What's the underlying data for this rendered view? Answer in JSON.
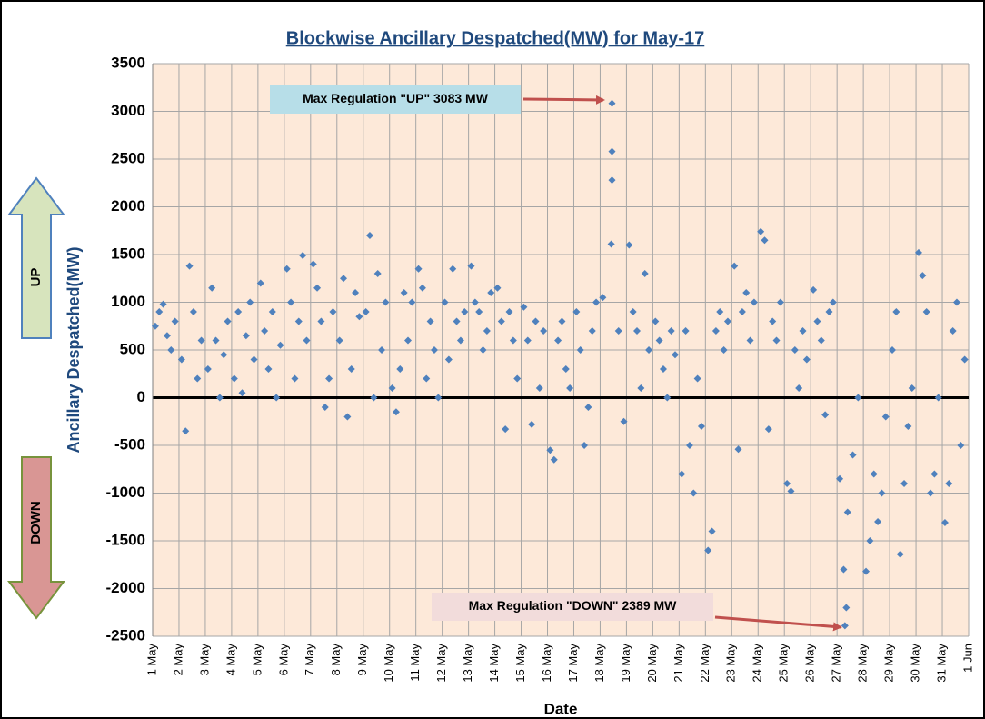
{
  "chart_data": {
    "type": "scatter",
    "title": "Blockwise Ancillary Despatched(MW) for May-17",
    "x_label": "Date",
    "y_label": "Ancillary Despatched(MW)",
    "side_labels": [
      "UP",
      "DOWN"
    ],
    "annotations": [
      "Max Regulation \"UP\" 3083 MW",
      "Max Regulation \"DOWN\" 2389 MW"
    ],
    "xlim": [
      0,
      31
    ],
    "ylim": [
      -2500,
      3500
    ],
    "xticks": [
      {
        "value": 0,
        "label": "1 May"
      },
      {
        "value": 1,
        "label": "2 May"
      },
      {
        "value": 2,
        "label": "3 May"
      },
      {
        "value": 3,
        "label": "4 May"
      },
      {
        "value": 4,
        "label": "5 May"
      },
      {
        "value": 5,
        "label": "6 May"
      },
      {
        "value": 6,
        "label": "7 May"
      },
      {
        "value": 7,
        "label": "8 May"
      },
      {
        "value": 8,
        "label": "9 May"
      },
      {
        "value": 9,
        "label": "10 May"
      },
      {
        "value": 10,
        "label": "11 May"
      },
      {
        "value": 11,
        "label": "12 May"
      },
      {
        "value": 12,
        "label": "13 May"
      },
      {
        "value": 13,
        "label": "14 May"
      },
      {
        "value": 14,
        "label": "15 May"
      },
      {
        "value": 15,
        "label": "16 May"
      },
      {
        "value": 16,
        "label": "17 May"
      },
      {
        "value": 17,
        "label": "18 May"
      },
      {
        "value": 18,
        "label": "19 May"
      },
      {
        "value": 19,
        "label": "20 May"
      },
      {
        "value": 20,
        "label": "21 May"
      },
      {
        "value": 21,
        "label": "22 May"
      },
      {
        "value": 22,
        "label": "23 May"
      },
      {
        "value": 23,
        "label": "24 May"
      },
      {
        "value": 24,
        "label": "25 May"
      },
      {
        "value": 25,
        "label": "26 May"
      },
      {
        "value": 26,
        "label": "27 May"
      },
      {
        "value": 27,
        "label": "28 May"
      },
      {
        "value": 28,
        "label": "29 May"
      },
      {
        "value": 29,
        "label": "30 May"
      },
      {
        "value": 30,
        "label": "31 May"
      },
      {
        "value": 31,
        "label": "1 Jun"
      }
    ],
    "yticks": [
      -2500,
      -2000,
      -1500,
      -1000,
      -500,
      0,
      500,
      1000,
      1500,
      2000,
      2500,
      3000,
      3500
    ],
    "grid": true,
    "color": "#4f81bd",
    "x": [
      0.1,
      0.25,
      0.4,
      0.55,
      0.7,
      0.85,
      1.1,
      1.25,
      1.4,
      1.55,
      1.7,
      1.85,
      2.1,
      2.25,
      2.4,
      2.55,
      2.7,
      2.85,
      3.1,
      3.25,
      3.4,
      3.55,
      3.7,
      3.85,
      4.1,
      4.25,
      4.4,
      4.55,
      4.7,
      4.85,
      5.1,
      5.25,
      5.4,
      5.55,
      5.7,
      5.85,
      6.1,
      6.25,
      6.4,
      6.55,
      6.7,
      6.85,
      7.1,
      7.25,
      7.4,
      7.55,
      7.7,
      7.85,
      8.1,
      8.25,
      8.4,
      8.55,
      8.7,
      8.85,
      9.1,
      9.25,
      9.4,
      9.55,
      9.7,
      9.85,
      10.1,
      10.25,
      10.4,
      10.55,
      10.7,
      10.85,
      11.1,
      11.25,
      11.4,
      11.55,
      11.7,
      11.85,
      12.1,
      12.25,
      12.4,
      12.55,
      12.7,
      12.85,
      13.1,
      13.25,
      13.4,
      13.55,
      13.7,
      13.85,
      14.1,
      14.25,
      14.4,
      14.55,
      14.7,
      14.85,
      15.1,
      15.25,
      15.4,
      15.55,
      15.7,
      15.85,
      16.1,
      16.25,
      16.4,
      16.55,
      16.7,
      16.85,
      17.1,
      17.45,
      17.45,
      17.45,
      17.42,
      17.7,
      17.9,
      18.1,
      18.25,
      18.4,
      18.55,
      18.7,
      18.85,
      19.1,
      19.25,
      19.4,
      19.55,
      19.7,
      19.85,
      20.1,
      20.25,
      20.4,
      20.55,
      20.7,
      20.85,
      21.1,
      21.25,
      21.4,
      21.55,
      21.7,
      21.85,
      22.1,
      22.25,
      22.4,
      22.55,
      22.7,
      22.85,
      23.1,
      23.25,
      23.4,
      23.55,
      23.7,
      23.85,
      24.1,
      24.25,
      24.4,
      24.55,
      24.7,
      24.85,
      25.1,
      25.25,
      25.4,
      25.55,
      25.7,
      25.85,
      26.1,
      26.3,
      26.35,
      26.25,
      26.4,
      26.6,
      26.8,
      27.1,
      27.25,
      27.4,
      27.55,
      27.7,
      27.85,
      28.1,
      28.25,
      28.4,
      28.55,
      28.7,
      28.85,
      29.1,
      29.25,
      29.4,
      29.55,
      29.7,
      29.85,
      30.1,
      30.25,
      30.4,
      30.55,
      30.7,
      30.85
    ],
    "values": [
      750,
      900,
      980,
      650,
      500,
      800,
      400,
      -350,
      1380,
      900,
      200,
      600,
      300,
      1150,
      600,
      0,
      450,
      800,
      200,
      900,
      50,
      650,
      1000,
      400,
      1200,
      700,
      300,
      900,
      0,
      550,
      1350,
      1000,
      200,
      800,
      1490,
      600,
      1400,
      1150,
      800,
      -100,
      200,
      900,
      600,
      1250,
      -200,
      300,
      1100,
      850,
      900,
      1700,
      0,
      1300,
      500,
      1000,
      100,
      -150,
      300,
      1100,
      600,
      1000,
      1350,
      1150,
      200,
      800,
      500,
      0,
      1000,
      400,
      1350,
      800,
      600,
      900,
      1380,
      1000,
      900,
      500,
      700,
      1100,
      1150,
      800,
      -330,
      900,
      600,
      200,
      950,
      600,
      -280,
      800,
      100,
      700,
      -550,
      -650,
      600,
      800,
      300,
      100,
      900,
      500,
      -500,
      -100,
      700,
      1000,
      1050,
      3083,
      2580,
      2280,
      1610,
      700,
      -250,
      1600,
      900,
      700,
      100,
      1300,
      500,
      800,
      600,
      300,
      0,
      700,
      450,
      -800,
      700,
      -500,
      -1000,
      200,
      -300,
      -1600,
      -1400,
      700,
      900,
      500,
      800,
      1380,
      -540,
      900,
      1100,
      600,
      1000,
      1740,
      1650,
      -330,
      800,
      600,
      1000,
      -900,
      -980,
      500,
      100,
      700,
      400,
      1130,
      800,
      600,
      -180,
      900,
      1000,
      -850,
      -2389,
      -2200,
      -1800,
      -1200,
      -600,
      0,
      -1820,
      -1500,
      -800,
      -1300,
      -1000,
      -200,
      500,
      900,
      -1640,
      -900,
      -300,
      100,
      1520,
      1280,
      900,
      -1000,
      -800,
      0,
      -1310,
      -900,
      700,
      1000,
      -500,
      400
    ]
  }
}
